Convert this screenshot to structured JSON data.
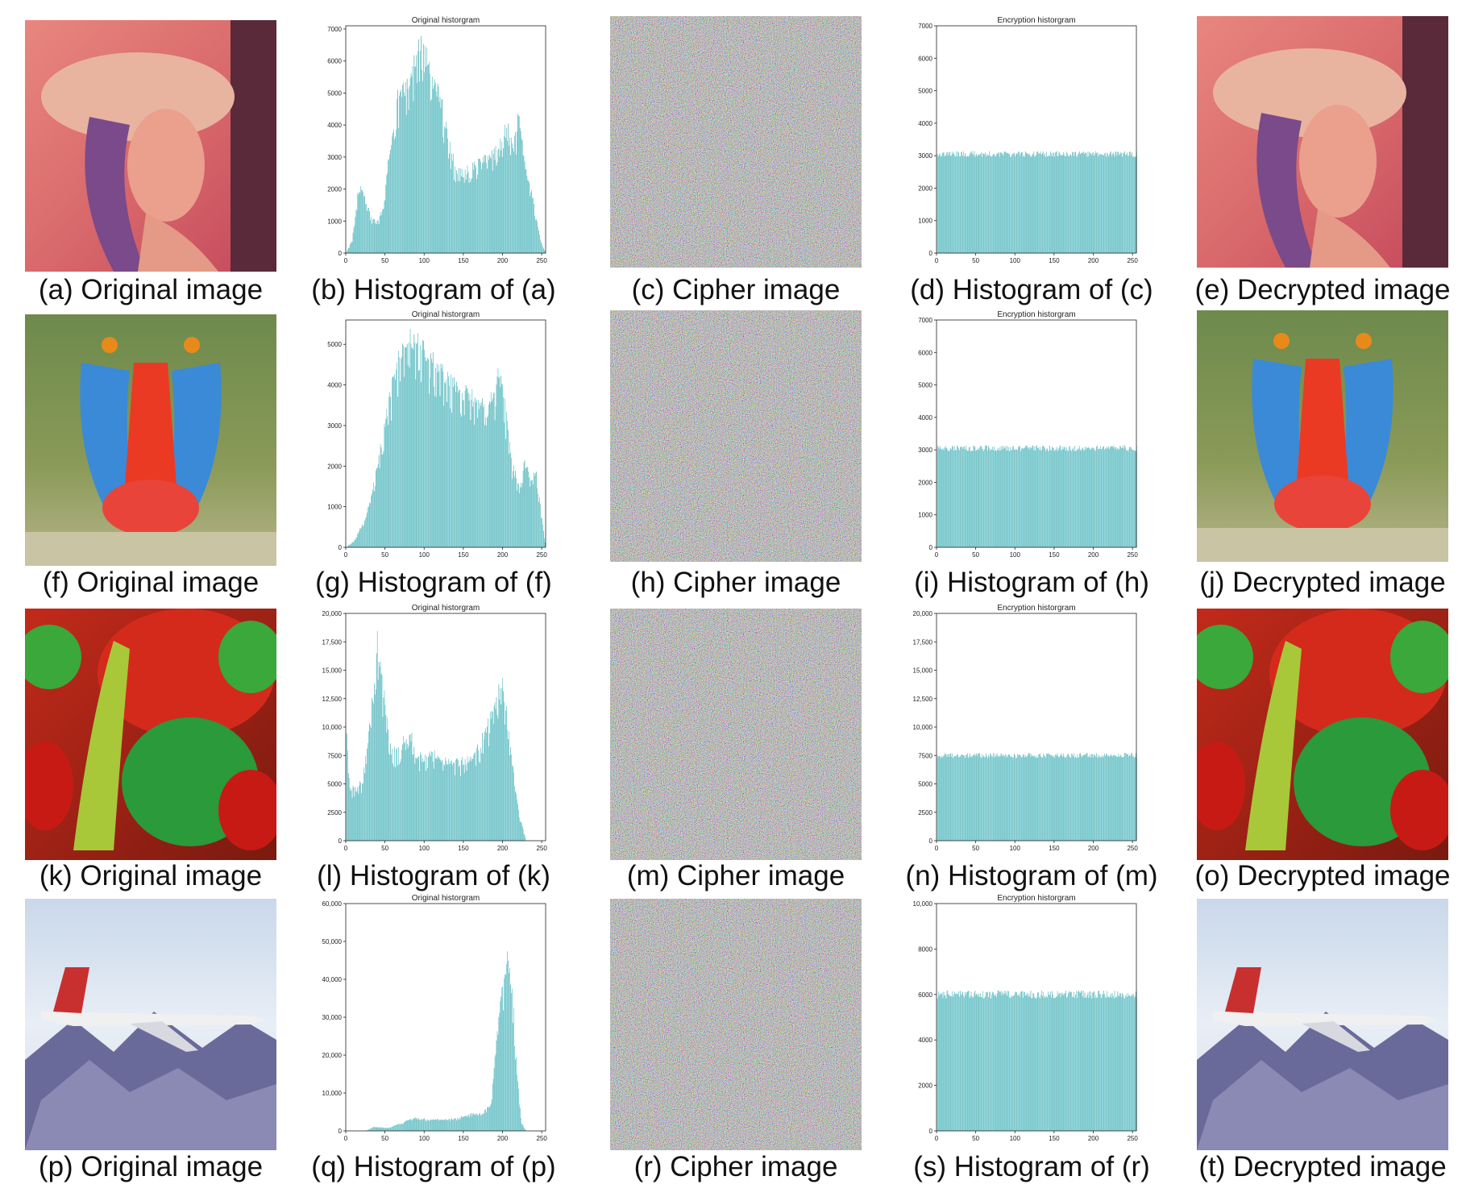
{
  "figure": {
    "colors": {
      "bar": "#2ab0b8",
      "bar_dark": "#1a8f96",
      "axis": "#222222",
      "background": "#ffffff"
    },
    "rows": [
      {
        "original": {
          "caption": "(a) Original image",
          "image": "lena-portrait"
        },
        "histogram_orig": {
          "caption": "(b) Histogram of (a)"
        },
        "cipher": {
          "caption": "(c) Cipher image",
          "image": "random-noise"
        },
        "histogram_enc": {
          "caption": "(d) Histogram of (c)"
        },
        "decrypted": {
          "caption": "(e) Decrypted image",
          "image": "lena-portrait"
        }
      },
      {
        "original": {
          "caption": "(f) Original image",
          "image": "baboon-mandrill"
        },
        "histogram_orig": {
          "caption": "(g) Histogram of (f)"
        },
        "cipher": {
          "caption": "(h) Cipher image",
          "image": "random-noise"
        },
        "histogram_enc": {
          "caption": "(i) Histogram of (h)"
        },
        "decrypted": {
          "caption": "(j) Decrypted image",
          "image": "baboon-mandrill"
        }
      },
      {
        "original": {
          "caption": "(k) Original image",
          "image": "peppers"
        },
        "histogram_orig": {
          "caption": "(l) Histogram of (k)"
        },
        "cipher": {
          "caption": "(m) Cipher image",
          "image": "random-noise"
        },
        "histogram_enc": {
          "caption": "(n) Histogram of (m)"
        },
        "decrypted": {
          "caption": "(o) Decrypted image",
          "image": "peppers"
        }
      },
      {
        "original": {
          "caption": "(p) Original image",
          "image": "f16-airplane"
        },
        "histogram_orig": {
          "caption": "(q) Histogram of (p)"
        },
        "cipher": {
          "caption": "(r) Cipher image",
          "image": "random-noise"
        },
        "histogram_enc": {
          "caption": "(s) Histogram of (r)"
        },
        "decrypted": {
          "caption": "(t) Decrypted image",
          "image": "f16-airplane"
        }
      }
    ]
  },
  "chart_data": [
    {
      "id": "b",
      "type": "bar",
      "title": "Original historgram",
      "xlim": [
        0,
        255
      ],
      "ylim": [
        0,
        7100
      ],
      "xticks": [
        0,
        50,
        100,
        150,
        200,
        250
      ],
      "yticks": [
        0,
        1000,
        2000,
        3000,
        4000,
        5000,
        6000,
        7000
      ],
      "ytick_labels": [
        "0",
        "1000",
        "2000",
        "3000",
        "4000",
        "5000",
        "6000",
        "7000"
      ],
      "profile": [
        [
          0,
          0
        ],
        [
          8,
          400
        ],
        [
          15,
          1800
        ],
        [
          20,
          2050
        ],
        [
          25,
          1700
        ],
        [
          32,
          1100
        ],
        [
          40,
          1000
        ],
        [
          48,
          1400
        ],
        [
          56,
          3200
        ],
        [
          65,
          4800
        ],
        [
          75,
          5200
        ],
        [
          85,
          5700
        ],
        [
          95,
          6600
        ],
        [
          100,
          6300
        ],
        [
          110,
          5500
        ],
        [
          120,
          4900
        ],
        [
          130,
          3700
        ],
        [
          140,
          2600
        ],
        [
          150,
          2500
        ],
        [
          165,
          2800
        ],
        [
          180,
          3000
        ],
        [
          195,
          3400
        ],
        [
          205,
          4100
        ],
        [
          213,
          3200
        ],
        [
          220,
          4300
        ],
        [
          228,
          2800
        ],
        [
          238,
          1800
        ],
        [
          248,
          400
        ],
        [
          255,
          0
        ]
      ]
    },
    {
      "id": "d",
      "type": "bar",
      "title": "Encryption historgram",
      "xlim": [
        0,
        255
      ],
      "ylim": [
        0,
        7000
      ],
      "xticks": [
        0,
        50,
        100,
        150,
        200,
        250
      ],
      "yticks": [
        0,
        1000,
        2000,
        3000,
        4000,
        5000,
        6000,
        7000
      ],
      "ytick_labels": [
        "0",
        "1000",
        "2000",
        "3000",
        "4000",
        "5000",
        "6000",
        "7000"
      ],
      "profile": [
        [
          0,
          3050
        ],
        [
          255,
          3050
        ]
      ]
    },
    {
      "id": "g",
      "type": "bar",
      "title": "Original historgram",
      "xlim": [
        0,
        255
      ],
      "ylim": [
        0,
        5600
      ],
      "xticks": [
        0,
        50,
        100,
        150,
        200,
        250
      ],
      "yticks": [
        0,
        1000,
        2000,
        3000,
        4000,
        5000
      ],
      "ytick_labels": [
        "0",
        "1000",
        "2000",
        "3000",
        "4000",
        "5000"
      ],
      "profile": [
        [
          0,
          0
        ],
        [
          10,
          150
        ],
        [
          25,
          700
        ],
        [
          40,
          2000
        ],
        [
          55,
          3600
        ],
        [
          65,
          4500
        ],
        [
          75,
          5200
        ],
        [
          90,
          5100
        ],
        [
          100,
          4800
        ],
        [
          115,
          4500
        ],
        [
          130,
          4200
        ],
        [
          150,
          3800
        ],
        [
          170,
          3600
        ],
        [
          190,
          3800
        ],
        [
          195,
          4400
        ],
        [
          203,
          3500
        ],
        [
          212,
          2000
        ],
        [
          222,
          1500
        ],
        [
          228,
          2100
        ],
        [
          236,
          1700
        ],
        [
          243,
          1900
        ],
        [
          250,
          700
        ],
        [
          255,
          0
        ]
      ]
    },
    {
      "id": "i",
      "type": "bar",
      "title": "Encryption historgram",
      "xlim": [
        0,
        255
      ],
      "ylim": [
        0,
        7000
      ],
      "xticks": [
        0,
        50,
        100,
        150,
        200,
        250
      ],
      "yticks": [
        0,
        1000,
        2000,
        3000,
        4000,
        5000,
        6000,
        7000
      ],
      "ytick_labels": [
        "0",
        "1000",
        "2000",
        "3000",
        "4000",
        "5000",
        "6000",
        "7000"
      ],
      "profile": [
        [
          0,
          3050
        ],
        [
          255,
          3050
        ]
      ]
    },
    {
      "id": "l",
      "type": "bar",
      "title": "Original historgram",
      "xlim": [
        0,
        255
      ],
      "ylim": [
        0,
        20000
      ],
      "xticks": [
        0,
        50,
        100,
        150,
        200,
        250
      ],
      "yticks": [
        0,
        2500,
        5000,
        7500,
        10000,
        12500,
        15000,
        17500,
        20000
      ],
      "ytick_labels": [
        "0",
        "2500",
        "5000",
        "7500",
        "10,000",
        "12,500",
        "15,000",
        "17,500",
        "20,000"
      ],
      "profile": [
        [
          0,
          10000
        ],
        [
          5,
          4500
        ],
        [
          20,
          5200
        ],
        [
          30,
          10000
        ],
        [
          40,
          17500
        ],
        [
          48,
          13000
        ],
        [
          58,
          8000
        ],
        [
          68,
          8000
        ],
        [
          80,
          10000
        ],
        [
          90,
          7500
        ],
        [
          100,
          7200
        ],
        [
          110,
          8000
        ],
        [
          122,
          7000
        ],
        [
          135,
          6800
        ],
        [
          150,
          7000
        ],
        [
          165,
          7500
        ],
        [
          180,
          10000
        ],
        [
          195,
          13000
        ],
        [
          200,
          14000
        ],
        [
          207,
          10500
        ],
        [
          215,
          5000
        ],
        [
          222,
          2000
        ],
        [
          230,
          0
        ],
        [
          255,
          0
        ]
      ]
    },
    {
      "id": "n",
      "type": "bar",
      "title": "Encryption historgram",
      "xlim": [
        0,
        255
      ],
      "ylim": [
        0,
        20000
      ],
      "xticks": [
        0,
        50,
        100,
        150,
        200,
        250
      ],
      "yticks": [
        0,
        2500,
        5000,
        7500,
        10000,
        12500,
        15000,
        17500,
        20000
      ],
      "ytick_labels": [
        "0",
        "2500",
        "5000",
        "7500",
        "10,000",
        "12,500",
        "15,000",
        "17,500",
        "20,000"
      ],
      "profile": [
        [
          0,
          7500
        ],
        [
          255,
          7500
        ]
      ]
    },
    {
      "id": "q",
      "type": "bar",
      "title": "Original historgram",
      "xlim": [
        0,
        255
      ],
      "ylim": [
        0,
        60000
      ],
      "xticks": [
        0,
        50,
        100,
        150,
        200,
        250
      ],
      "yticks": [
        0,
        10000,
        20000,
        30000,
        40000,
        50000,
        60000
      ],
      "ytick_labels": [
        "0",
        "10,000",
        "20,000",
        "30,000",
        "40,000",
        "50,000",
        "60,000"
      ],
      "profile": [
        [
          0,
          0
        ],
        [
          25,
          0
        ],
        [
          35,
          1000
        ],
        [
          55,
          800
        ],
        [
          75,
          2500
        ],
        [
          90,
          3500
        ],
        [
          105,
          3000
        ],
        [
          125,
          3000
        ],
        [
          145,
          3500
        ],
        [
          160,
          4500
        ],
        [
          175,
          4500
        ],
        [
          185,
          8000
        ],
        [
          193,
          25000
        ],
        [
          200,
          38000
        ],
        [
          207,
          46000
        ],
        [
          213,
          35000
        ],
        [
          218,
          15000
        ],
        [
          224,
          2000
        ],
        [
          230,
          0
        ],
        [
          255,
          0
        ]
      ]
    },
    {
      "id": "s",
      "type": "bar",
      "title": "Encryption historgram",
      "xlim": [
        0,
        255
      ],
      "ylim": [
        0,
        10000
      ],
      "xticks": [
        0,
        50,
        100,
        150,
        200,
        250
      ],
      "yticks": [
        0,
        2000,
        4000,
        6000,
        8000,
        10000
      ],
      "ytick_labels": [
        "0",
        "2000",
        "4000",
        "6000",
        "8000",
        "10,000"
      ],
      "profile": [
        [
          0,
          6000
        ],
        [
          255,
          6000
        ]
      ]
    }
  ]
}
